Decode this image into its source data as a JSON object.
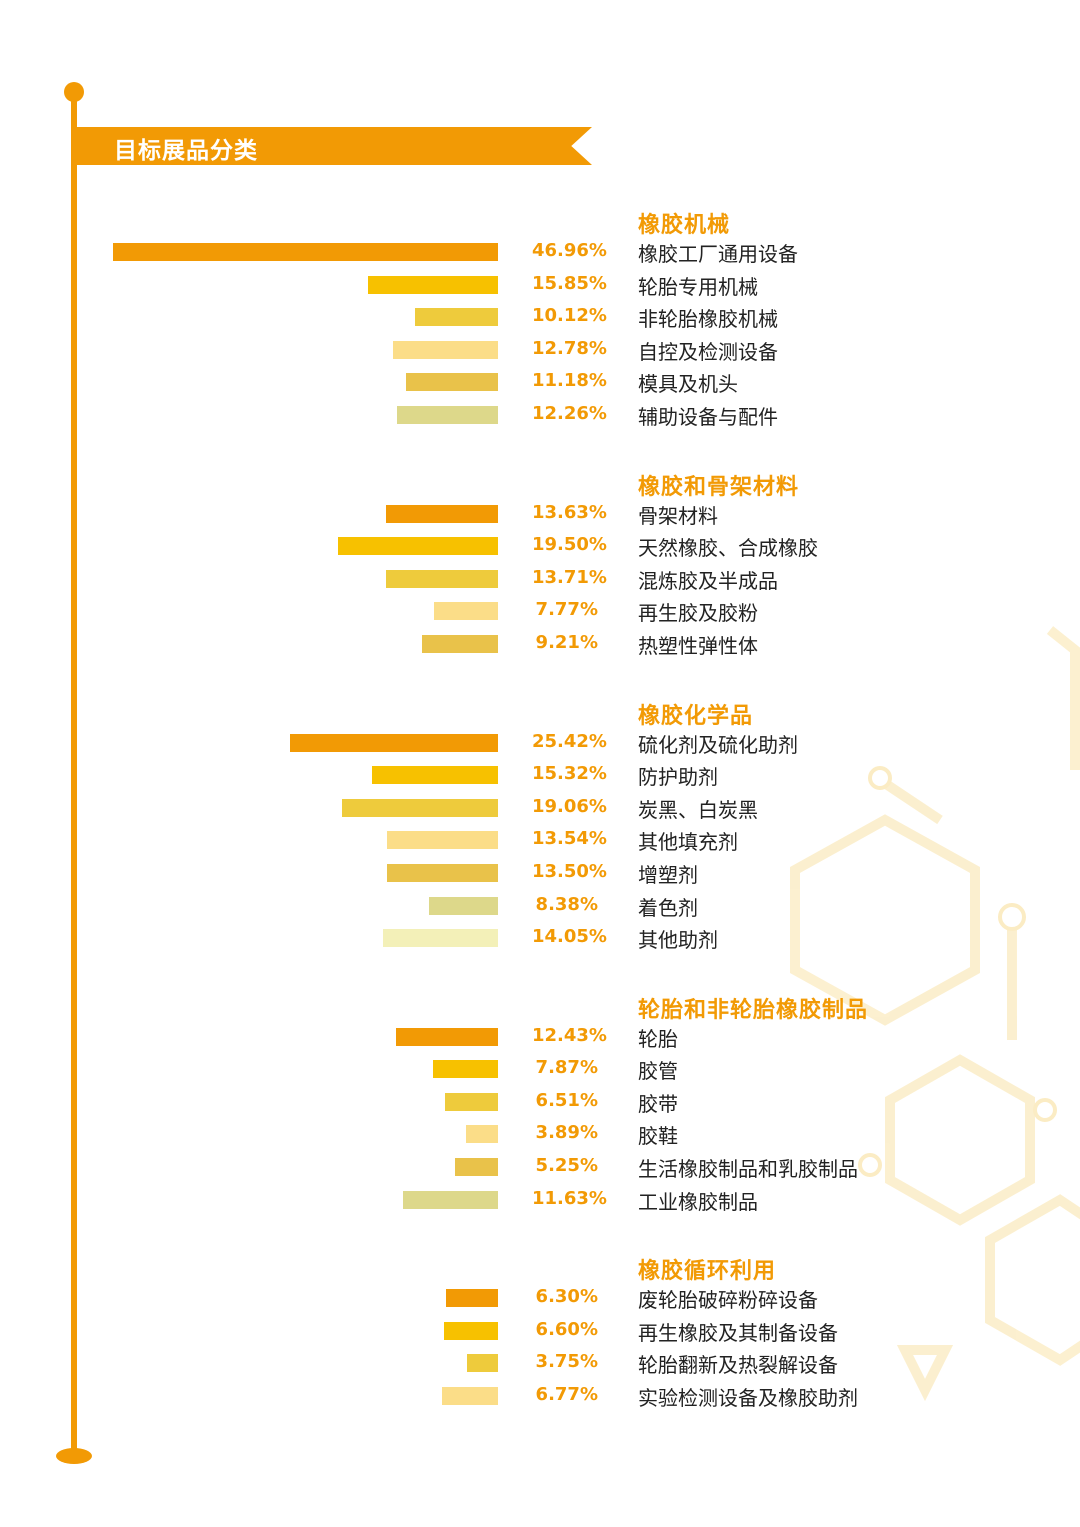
{
  "chart_data": {
    "type": "bar",
    "orientation": "horizontal",
    "title": "目标展品分类",
    "unit": "%",
    "colors": [
      "#f29a05",
      "#f7c100",
      "#eecb3c",
      "#fbdd88",
      "#e9c24a",
      "#ddd88a",
      "#f3f0b8"
    ],
    "groups": [
      {
        "name": "橡胶机械",
        "categories": [
          "橡胶工厂通用设备",
          "轮胎专用机械",
          "非轮胎橡胶机械",
          "自控及检测设备",
          "模具及机头",
          "辅助设备与配件"
        ],
        "values": [
          46.96,
          15.85,
          10.12,
          12.78,
          11.18,
          12.26
        ],
        "labels": [
          "46.96%",
          "15.85%",
          "10.12%",
          "12.78%",
          "11.18%",
          "12.26%"
        ]
      },
      {
        "name": "橡胶和骨架材料",
        "categories": [
          "骨架材料",
          "天然橡胶、合成橡胶",
          "混炼胶及半成品",
          "再生胶及胶粉",
          "热塑性弹性体"
        ],
        "values": [
          13.63,
          19.5,
          13.71,
          7.77,
          9.21
        ],
        "labels": [
          "13.63%",
          "19.50%",
          "13.71%",
          "7.77%",
          "9.21%"
        ]
      },
      {
        "name": "橡胶化学品",
        "categories": [
          "硫化剂及硫化助剂",
          "防护助剂",
          "炭黑、白炭黑",
          "其他填充剂",
          "增塑剂",
          "着色剂",
          "其他助剂"
        ],
        "values": [
          25.42,
          15.32,
          19.06,
          13.54,
          13.5,
          8.38,
          14.05
        ],
        "labels": [
          "25.42%",
          "15.32%",
          "19.06%",
          "13.54%",
          "13.50%",
          "8.38%",
          "14.05%"
        ]
      },
      {
        "name": "轮胎和非轮胎橡胶制品",
        "categories": [
          "轮胎",
          "胶管",
          "胶带",
          "胶鞋",
          "生活橡胶制品和乳胶制品",
          "工业橡胶制品"
        ],
        "values": [
          12.43,
          7.87,
          6.51,
          3.89,
          5.25,
          11.63
        ],
        "labels": [
          "12.43%",
          "7.87%",
          "6.51%",
          "3.89%",
          "5.25%",
          "11.63%"
        ]
      },
      {
        "name": "橡胶循环利用",
        "categories": [
          "废轮胎破碎粉碎设备",
          "再生橡胶及其制备设备",
          "轮胎翻新及热裂解设备",
          "实验检测设备及橡胶助剂"
        ],
        "values": [
          6.3,
          6.6,
          3.75,
          6.77
        ],
        "labels": [
          "6.30%",
          "6.60%",
          "3.75%",
          "6.77%"
        ]
      }
    ]
  }
}
